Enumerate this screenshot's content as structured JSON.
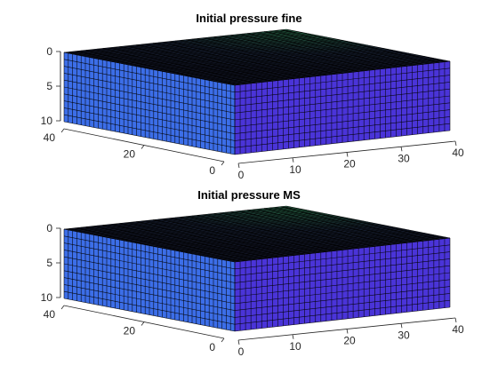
{
  "chart_data": [
    {
      "type": "surface",
      "title": "Initial pressure fine",
      "xlabel": "",
      "ylabel": "",
      "zlabel": "",
      "grid": {
        "nx": 40,
        "ny": 40,
        "nz": 10
      },
      "x_ticks": [
        "0",
        "10",
        "20",
        "30",
        "40"
      ],
      "y_ticks": [
        "0",
        "20",
        "40"
      ],
      "z_ticks": [
        "0",
        "5",
        "10"
      ],
      "xlim": [
        0,
        40
      ],
      "ylim": [
        0,
        40
      ],
      "zlim": [
        0,
        10
      ],
      "z_direction": "reversed",
      "colors": {
        "front_face": "#4a34d8",
        "left_face": "#3c6ee8",
        "top_face": "#1a2438",
        "top_highlight": "#2a6e4a",
        "edge": "#000000"
      }
    },
    {
      "type": "surface",
      "title": "Initial pressure MS",
      "xlabel": "",
      "ylabel": "",
      "zlabel": "",
      "grid": {
        "nx": 40,
        "ny": 40,
        "nz": 10
      },
      "x_ticks": [
        "0",
        "10",
        "20",
        "30",
        "40"
      ],
      "y_ticks": [
        "0",
        "20",
        "40"
      ],
      "z_ticks": [
        "0",
        "5",
        "10"
      ],
      "xlim": [
        0,
        40
      ],
      "ylim": [
        0,
        40
      ],
      "zlim": [
        0,
        10
      ],
      "z_direction": "reversed",
      "colors": {
        "front_face": "#4a34d8",
        "left_face": "#3c6ee8",
        "top_face": "#1a2438",
        "top_highlight": "#2a6e4a",
        "edge": "#000000"
      }
    }
  ]
}
